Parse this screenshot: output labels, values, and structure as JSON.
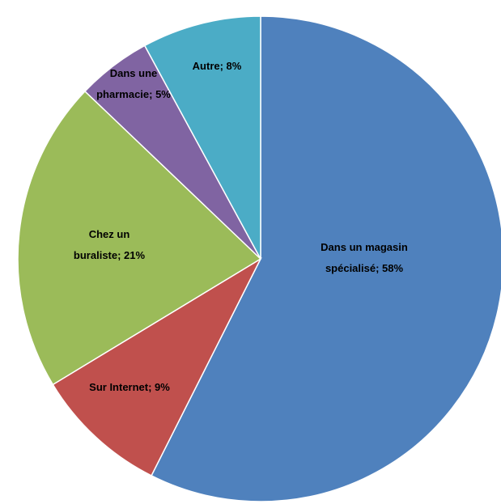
{
  "chart_data": {
    "type": "pie",
    "title": "",
    "slices": [
      {
        "key": "magasin",
        "lines": [
          "Dans un magasin",
          "spécialisé; 58%"
        ],
        "value": 58,
        "color": "#4F81BD"
      },
      {
        "key": "internet",
        "lines": [
          "Sur Internet; 9%"
        ],
        "value": 9,
        "color": "#C0504D"
      },
      {
        "key": "buraliste",
        "lines": [
          "Chez un",
          "buraliste; 21%"
        ],
        "value": 21,
        "color": "#9BBB59"
      },
      {
        "key": "pharmacie",
        "lines": [
          "Dans une",
          "pharmacie; 5%"
        ],
        "value": 5,
        "color": "#8064A2"
      },
      {
        "key": "autre",
        "lines": [
          "Autre; 8%"
        ],
        "value": 8,
        "color": "#4BACC6"
      }
    ]
  }
}
